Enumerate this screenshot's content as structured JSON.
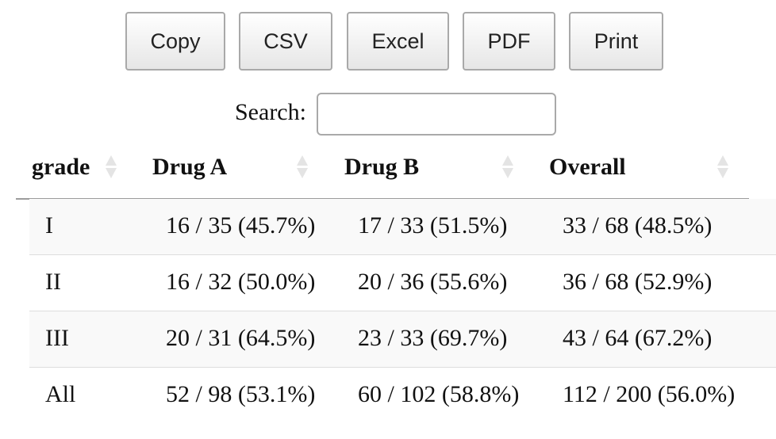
{
  "buttons": {
    "copy": "Copy",
    "csv": "CSV",
    "excel": "Excel",
    "pdf": "PDF",
    "print": "Print"
  },
  "search": {
    "label": "Search:",
    "value": ""
  },
  "table": {
    "columns": [
      "grade",
      "Drug A",
      "Drug B",
      "Overall"
    ],
    "rows": [
      [
        "I",
        "16 / 35 (45.7%)",
        "17 / 33 (51.5%)",
        "33 / 68 (48.5%)"
      ],
      [
        "II",
        "16 / 32 (50.0%)",
        "20 / 36 (55.6%)",
        "36 / 68 (52.9%)"
      ],
      [
        "III",
        "20 / 31 (64.5%)",
        "23 / 33 (69.7%)",
        "43 / 64 (67.2%)"
      ],
      [
        "All",
        "52 / 98 (53.1%)",
        "60 / 102 (58.8%)",
        "112 / 200 (56.0%)"
      ]
    ]
  },
  "icons": {
    "sort": "sort-both-icon"
  }
}
